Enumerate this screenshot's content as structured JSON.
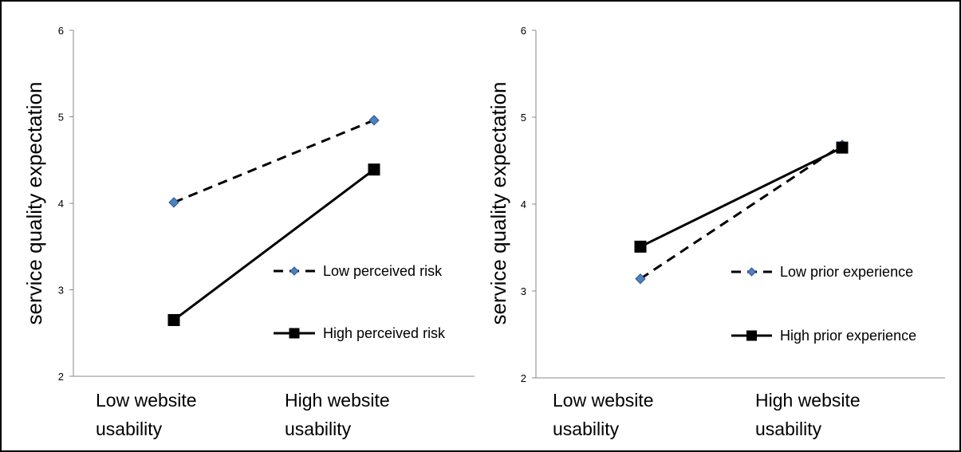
{
  "chart_data": [
    {
      "type": "line",
      "categories": [
        "Low website usability",
        "High website usability"
      ],
      "category_lines": [
        [
          "Low website",
          "usability"
        ],
        [
          "High website",
          "usability"
        ]
      ],
      "ylabel": "service quality expectation",
      "xlabel": "",
      "ylim": [
        2,
        6
      ],
      "yticks": [
        2,
        3,
        4,
        5,
        6
      ],
      "grid": false,
      "legend_position": "right",
      "series": [
        {
          "name": "Low perceived risk",
          "values": [
            4.01,
            4.96
          ],
          "style": "dashed",
          "marker": "diamond",
          "marker_color": "#4f81bd"
        },
        {
          "name": "High perceived risk",
          "values": [
            2.65,
            4.39
          ],
          "style": "solid",
          "marker": "square",
          "marker_color": "#000000"
        }
      ]
    },
    {
      "type": "line",
      "categories": [
        "Low website usability",
        "High website usability"
      ],
      "category_lines": [
        [
          "Low website",
          "usability"
        ],
        [
          "High website",
          "usability"
        ]
      ],
      "ylabel": "service quality expectation",
      "xlabel": "",
      "ylim": [
        2,
        6
      ],
      "yticks": [
        2,
        3,
        4,
        5,
        6
      ],
      "grid": false,
      "legend_position": "right",
      "series": [
        {
          "name": "Low prior experience",
          "values": [
            3.14,
            4.68
          ],
          "style": "dashed",
          "marker": "diamond",
          "marker_color": "#4f81bd"
        },
        {
          "name": "High prior experience",
          "values": [
            3.51,
            4.65
          ],
          "style": "solid",
          "marker": "square",
          "marker_color": "#000000"
        }
      ]
    }
  ]
}
